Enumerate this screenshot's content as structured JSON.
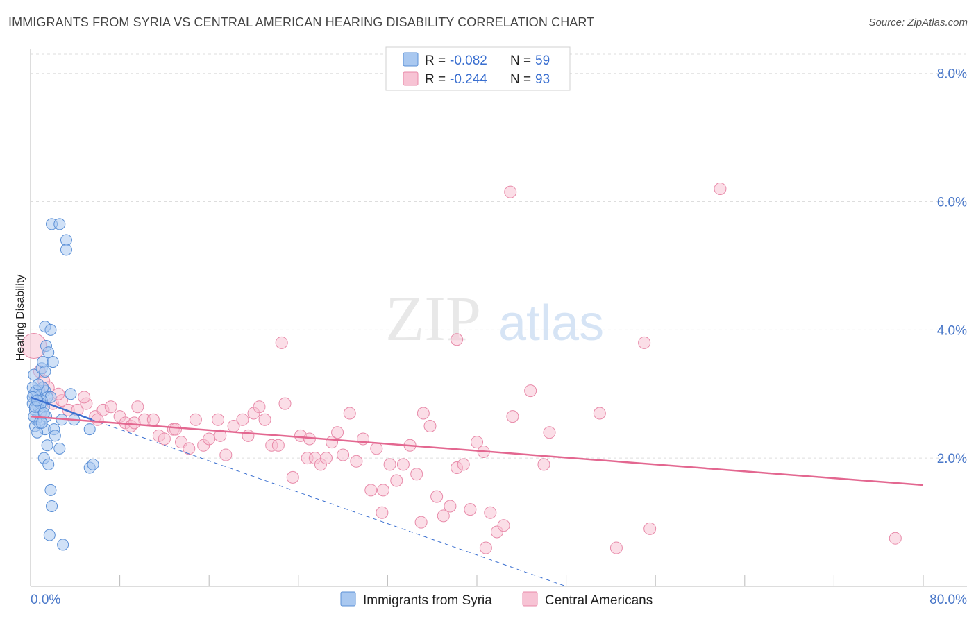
{
  "title": "IMMIGRANTS FROM SYRIA VS CENTRAL AMERICAN HEARING DISABILITY CORRELATION CHART",
  "source": "Source: ZipAtlas.com",
  "watermark": {
    "zip": "ZIP",
    "atlas": "atlas"
  },
  "legend": {
    "r_label": "R =",
    "n_label": "N =",
    "rows": [
      {
        "r": "-0.082",
        "n": "59"
      },
      {
        "r": "-0.244",
        "n": "93"
      }
    ]
  },
  "colors": {
    "syria_fill": "#a9c8f0",
    "syria_stroke": "#5a8fd6",
    "syria_line": "#3a6fd0",
    "ca_fill": "#f7c3d4",
    "ca_stroke": "#e88aa9",
    "ca_line": "#e36790",
    "tick": "#4a78c9",
    "grid": "#dddddd"
  },
  "chart_data": {
    "type": "scatter",
    "ylabel": "Hearing Disability",
    "xlim": [
      0,
      80
    ],
    "ylim": [
      0,
      8.3
    ],
    "x_tick_labels": [
      "0.0%",
      "80.0%"
    ],
    "y_ticks": [
      2,
      4,
      6,
      8
    ],
    "y_tick_labels": [
      "2.0%",
      "4.0%",
      "6.0%",
      "8.0%"
    ],
    "grid": "horizontal dashed",
    "legend_position": "top-center",
    "series": [
      {
        "name": "Immigrants from Syria",
        "points": [
          [
            0.2,
            2.85
          ],
          [
            0.3,
            3.0
          ],
          [
            0.4,
            2.75
          ],
          [
            0.5,
            2.9
          ],
          [
            0.3,
            3.3
          ],
          [
            0.6,
            2.95
          ],
          [
            0.8,
            3.05
          ],
          [
            0.5,
            2.6
          ],
          [
            0.4,
            2.5
          ],
          [
            0.7,
            2.8
          ],
          [
            1.0,
            3.4
          ],
          [
            1.1,
            3.5
          ],
          [
            1.3,
            3.05
          ],
          [
            0.9,
            2.7
          ],
          [
            1.2,
            2.8
          ],
          [
            1.5,
            2.95
          ],
          [
            1.3,
            2.45
          ],
          [
            1.5,
            2.2
          ],
          [
            1.2,
            2.0
          ],
          [
            1.6,
            1.9
          ],
          [
            1.4,
            3.75
          ],
          [
            1.6,
            3.65
          ],
          [
            1.3,
            4.05
          ],
          [
            1.8,
            4.0
          ],
          [
            2.0,
            3.5
          ],
          [
            1.8,
            2.95
          ],
          [
            2.1,
            2.45
          ],
          [
            2.2,
            2.35
          ],
          [
            2.6,
            2.15
          ],
          [
            2.8,
            2.6
          ],
          [
            1.9,
            5.65
          ],
          [
            2.6,
            5.65
          ],
          [
            3.2,
            5.4
          ],
          [
            3.2,
            5.25
          ],
          [
            1.8,
            1.5
          ],
          [
            1.9,
            1.25
          ],
          [
            1.7,
            0.8
          ],
          [
            2.9,
            0.65
          ],
          [
            3.6,
            3.0
          ],
          [
            3.9,
            2.6
          ],
          [
            5.3,
            1.85
          ],
          [
            5.6,
            1.9
          ],
          [
            5.3,
            2.45
          ],
          [
            0.2,
            3.1
          ],
          [
            0.3,
            2.65
          ],
          [
            0.6,
            2.4
          ],
          [
            0.8,
            2.55
          ],
          [
            1.0,
            2.9
          ],
          [
            1.1,
            3.1
          ],
          [
            0.9,
            2.85
          ],
          [
            1.4,
            2.65
          ],
          [
            0.5,
            3.05
          ],
          [
            0.7,
            3.15
          ],
          [
            0.2,
            2.95
          ],
          [
            0.4,
            2.8
          ],
          [
            1.2,
            2.7
          ],
          [
            0.6,
            2.9
          ],
          [
            1.0,
            2.55
          ],
          [
            1.3,
            3.35
          ]
        ]
      },
      {
        "name": "Central Americans",
        "points": [
          [
            0.3,
            3.75
          ],
          [
            0.8,
            3.35
          ],
          [
            1.2,
            3.2
          ],
          [
            1.6,
            3.1
          ],
          [
            2.0,
            2.85
          ],
          [
            2.8,
            2.9
          ],
          [
            3.4,
            2.75
          ],
          [
            4.2,
            2.75
          ],
          [
            5.0,
            2.85
          ],
          [
            5.8,
            2.65
          ],
          [
            6.5,
            2.75
          ],
          [
            7.2,
            2.8
          ],
          [
            8.0,
            2.65
          ],
          [
            8.5,
            2.55
          ],
          [
            9.0,
            2.5
          ],
          [
            9.6,
            2.8
          ],
          [
            10.2,
            2.6
          ],
          [
            11.0,
            2.6
          ],
          [
            11.5,
            2.35
          ],
          [
            12.0,
            2.3
          ],
          [
            12.8,
            2.45
          ],
          [
            13.5,
            2.25
          ],
          [
            14.2,
            2.15
          ],
          [
            14.8,
            2.6
          ],
          [
            15.5,
            2.2
          ],
          [
            16.0,
            2.3
          ],
          [
            16.8,
            2.6
          ],
          [
            17.5,
            2.05
          ],
          [
            18.2,
            2.5
          ],
          [
            19.0,
            2.6
          ],
          [
            19.5,
            2.35
          ],
          [
            20.0,
            2.7
          ],
          [
            20.5,
            2.8
          ],
          [
            21.0,
            2.6
          ],
          [
            21.6,
            2.2
          ],
          [
            22.2,
            2.2
          ],
          [
            22.8,
            2.85
          ],
          [
            23.5,
            1.7
          ],
          [
            24.2,
            2.35
          ],
          [
            24.8,
            2.0
          ],
          [
            25.5,
            2.0
          ],
          [
            26.0,
            1.9
          ],
          [
            26.5,
            2.0
          ],
          [
            27.0,
            2.25
          ],
          [
            27.5,
            2.4
          ],
          [
            28.0,
            2.05
          ],
          [
            28.6,
            2.7
          ],
          [
            29.2,
            1.95
          ],
          [
            29.8,
            2.3
          ],
          [
            30.5,
            1.5
          ],
          [
            31.0,
            2.15
          ],
          [
            31.6,
            1.5
          ],
          [
            32.2,
            1.9
          ],
          [
            32.8,
            1.65
          ],
          [
            33.4,
            1.9
          ],
          [
            34.0,
            2.2
          ],
          [
            34.6,
            1.75
          ],
          [
            35.2,
            2.7
          ],
          [
            35.8,
            2.5
          ],
          [
            36.4,
            1.4
          ],
          [
            37.0,
            1.1
          ],
          [
            37.6,
            1.25
          ],
          [
            38.2,
            1.85
          ],
          [
            38.8,
            1.9
          ],
          [
            39.4,
            1.2
          ],
          [
            40.0,
            2.25
          ],
          [
            40.6,
            2.1
          ],
          [
            41.2,
            1.15
          ],
          [
            41.8,
            0.85
          ],
          [
            42.4,
            0.95
          ],
          [
            43.2,
            2.65
          ],
          [
            44.8,
            3.05
          ],
          [
            46.5,
            2.4
          ],
          [
            46.0,
            1.9
          ],
          [
            51.0,
            2.7
          ],
          [
            52.5,
            0.6
          ],
          [
            55.5,
            0.9
          ],
          [
            77.5,
            0.75
          ],
          [
            22.5,
            3.8
          ],
          [
            31.5,
            1.15
          ],
          [
            40.8,
            0.6
          ],
          [
            38.2,
            3.85
          ],
          [
            55.0,
            3.8
          ],
          [
            43.0,
            6.15
          ],
          [
            61.8,
            6.2
          ],
          [
            2.5,
            3.0
          ],
          [
            4.8,
            2.95
          ],
          [
            6.0,
            2.6
          ],
          [
            9.3,
            2.55
          ],
          [
            13.0,
            2.45
          ],
          [
            17.0,
            2.35
          ],
          [
            25.0,
            2.3
          ],
          [
            35.0,
            1.0
          ]
        ]
      }
    ],
    "trendlines": [
      {
        "series": "Immigrants from Syria",
        "from": [
          0,
          2.95
        ],
        "to": [
          5.5,
          2.6
        ],
        "dashed_extension_to": [
          48,
          0
        ]
      },
      {
        "series": "Central Americans",
        "from": [
          0,
          2.65
        ],
        "to": [
          80,
          1.58
        ]
      }
    ]
  }
}
